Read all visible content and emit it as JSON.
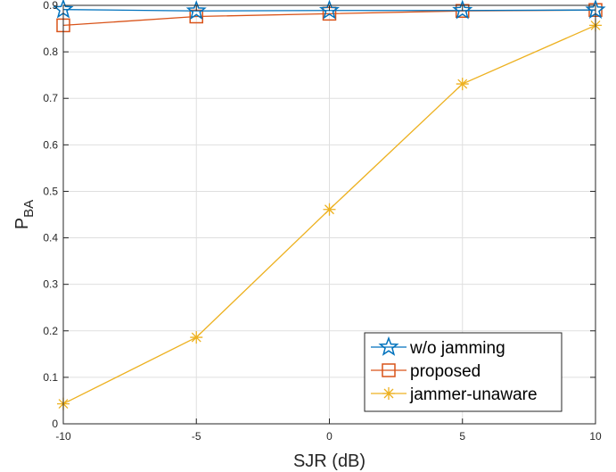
{
  "chart_data": {
    "type": "line",
    "xlabel": "SJR (dB)",
    "ylabel_main": "P",
    "ylabel_sub": "BA",
    "x": [
      -10,
      -5,
      0,
      5,
      10
    ],
    "xlim": [
      -10,
      10
    ],
    "ylim": [
      0,
      0.9
    ],
    "xticks": [
      "-10",
      "-5",
      "0",
      "5",
      "10"
    ],
    "yticks": [
      "0",
      "0.1",
      "0.2",
      "0.3",
      "0.4",
      "0.5",
      "0.6",
      "0.7",
      "0.8",
      "0.9"
    ],
    "grid": true,
    "legend_position": "bottom-right",
    "series": [
      {
        "name": "w/o jamming",
        "color": "#0072BD",
        "marker": "pentagram",
        "values": [
          0.891,
          0.888,
          0.889,
          0.889,
          0.89
        ]
      },
      {
        "name": "proposed",
        "color": "#D95319",
        "marker": "square",
        "values": [
          0.857,
          0.876,
          0.882,
          0.888,
          0.89
        ]
      },
      {
        "name": "jammer-unaware",
        "color": "#EDB120",
        "marker": "asterisk",
        "values": [
          0.043,
          0.186,
          0.461,
          0.731,
          0.857
        ]
      }
    ]
  }
}
